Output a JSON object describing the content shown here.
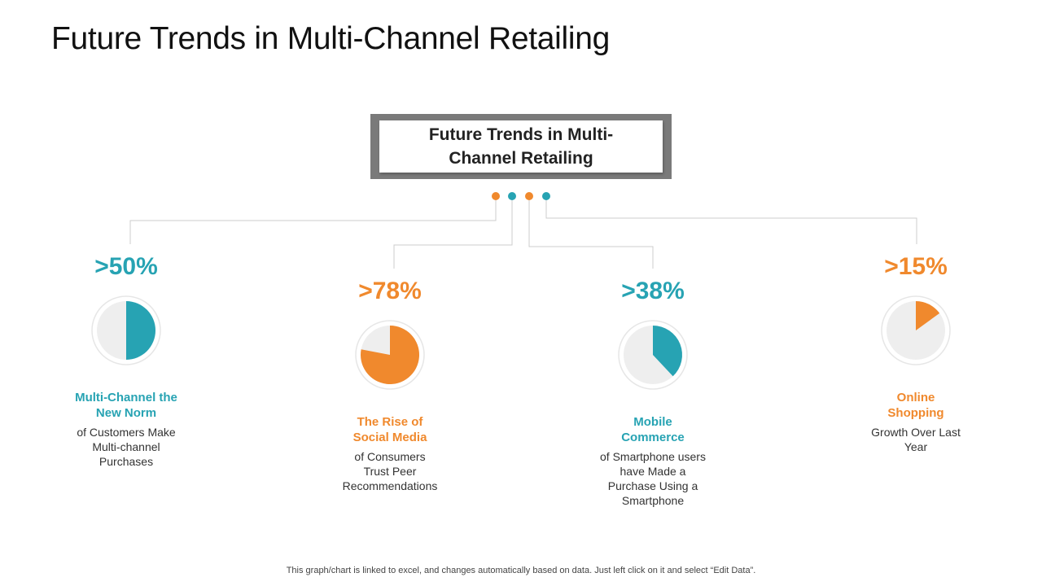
{
  "title": "Future Trends in Multi-Channel Retailing",
  "center_box": {
    "line1": "Future Trends in Multi-",
    "line2": "Channel Retailing"
  },
  "colors": {
    "teal": "#27a3b3",
    "orange": "#f0892d",
    "pie_background": "#eeeeee",
    "box_frame": "#7a7a7a",
    "connector": "#cccccc"
  },
  "chart_data": {
    "type": "pie",
    "items": [
      {
        "value_label": ">50%",
        "value": 50,
        "color": "#27a3b3",
        "label": "Multi-Channel the\nNew Norm",
        "description": "of Customers Make\nMulti-channel\nPurchases"
      },
      {
        "value_label": ">78%",
        "value": 78,
        "color": "#f0892d",
        "label": "The Rise of\nSocial Media",
        "description": "of Consumers\nTrust Peer\nRecommendations"
      },
      {
        "value_label": ">38%",
        "value": 38,
        "color": "#27a3b3",
        "label": "Mobile\nCommerce",
        "description": "of Smartphone users\nhave Made a\nPurchase Using a\nSmartphone"
      },
      {
        "value_label": ">15%",
        "value": 15,
        "color": "#f0892d",
        "label": "Online\nShopping",
        "description": "Growth Over Last\nYear"
      }
    ]
  },
  "footnote": "This graph/chart is linked to excel, and changes automatically based on data. Just left click on it and select “Edit Data”."
}
